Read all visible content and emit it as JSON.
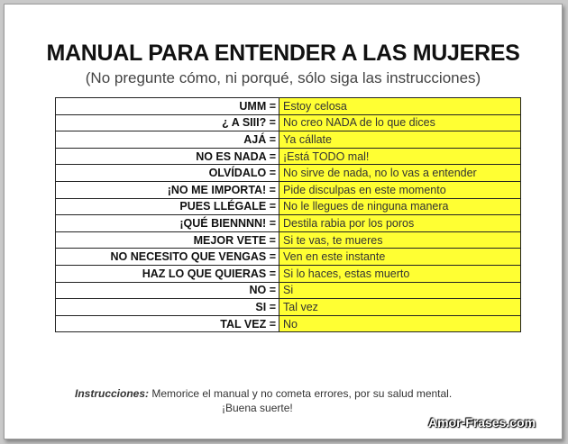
{
  "title": "MANUAL PARA ENTENDER A LAS MUJERES",
  "subtitle": "(No pregunte cómo, ni porqué, sólo siga las instrucciones)",
  "rows": [
    {
      "left": "UMM =",
      "right": "Estoy celosa"
    },
    {
      "left": "¿ A SIII? =",
      "right": "No creo NADA de lo que dices"
    },
    {
      "left": "AJÁ =",
      "right": "Ya cállate"
    },
    {
      "left": "NO ES NADA =",
      "right": "¡Está TODO mal!"
    },
    {
      "left": "OLVÍDALO =",
      "right": "No sirve de nada, no lo vas a entender"
    },
    {
      "left": "¡NO ME IMPORTA! =",
      "right": "Pide disculpas en este momento"
    },
    {
      "left": "PUES LLÉGALE =",
      "right": "No le llegues de ninguna manera"
    },
    {
      "left": "¡QUÉ BIENNNN! =",
      "right": "Destila rabia por los poros"
    },
    {
      "left": "MEJOR VETE =",
      "right": "Si te vas, te mueres"
    },
    {
      "left": "NO NECESITO QUE VENGAS =",
      "right": "Ven en este instante"
    },
    {
      "left": "HAZ LO QUE QUIERAS =",
      "right": "Si lo haces, estas muerto"
    },
    {
      "left": "NO =",
      "right": "Si"
    },
    {
      "left": "SI =",
      "right": "Tal vez"
    },
    {
      "left": "TAL VEZ =",
      "right": "No"
    }
  ],
  "instructions": {
    "label": "Instrucciones:",
    "text": " Memorice el manual y no cometa errores, por su salud mental.",
    "luck": "¡Buena suerte!"
  },
  "watermark": "Amor-Frases.com",
  "colors": {
    "highlight": "#ffff33",
    "border": "#222222"
  }
}
